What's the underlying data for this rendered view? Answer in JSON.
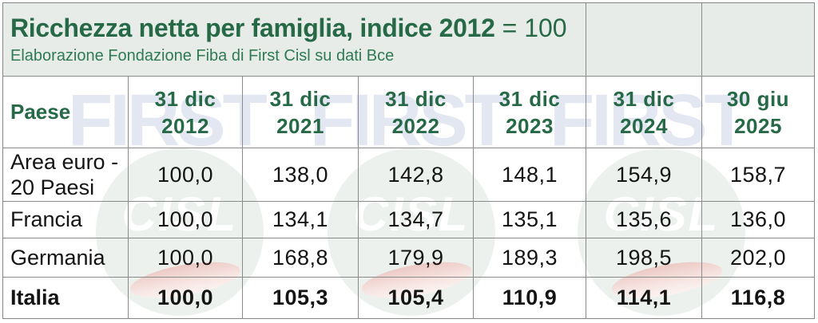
{
  "header": {
    "title_main": "Ricchezza netta per famiglia, indice 2012",
    "title_suffix": "= 100",
    "subtitle": "Elaborazione Fondazione Fiba di First Cisl su dati Bce"
  },
  "table": {
    "corner_label": "Paese",
    "columns": [
      {
        "line1": "31 dic",
        "line2": "2012"
      },
      {
        "line1": "31 dic",
        "line2": "2021"
      },
      {
        "line1": "31 dic",
        "line2": "2022"
      },
      {
        "line1": "31 dic",
        "line2": "2023"
      },
      {
        "line1": "31 dic",
        "line2": "2024"
      },
      {
        "line1": "30 giu",
        "line2": "2025"
      }
    ],
    "rows": [
      {
        "label": "Area euro - 20 Paesi",
        "bold": false,
        "values": [
          "100,0",
          "138,0",
          "142,8",
          "148,1",
          "154,9",
          "158,7"
        ]
      },
      {
        "label": "Francia",
        "bold": false,
        "values": [
          "100,0",
          "134,1",
          "134,7",
          "135,1",
          "135,6",
          "136,0"
        ]
      },
      {
        "label": "Germania",
        "bold": false,
        "values": [
          "100,0",
          "168,8",
          "179,9",
          "189,3",
          "198,5",
          "202,0"
        ]
      },
      {
        "label": "Italia",
        "bold": true,
        "values": [
          "100,0",
          "105,3",
          "105,4",
          "110,9",
          "114,1",
          "116,8"
        ]
      }
    ]
  },
  "watermark": {
    "first_text": "FIRST",
    "cisl_text": "CISL",
    "colors": {
      "first_text": "#e3e7f1",
      "logo_circle": "#edf1ed",
      "logo_letters": "#ffffff",
      "logo_swoosh": "#ecc9c4"
    }
  },
  "colors": {
    "title_green": "#266946",
    "subtitle_green": "#2e7a52",
    "header_bg": "#e8ece8",
    "grid_border": "#8a8a8a",
    "body_text": "#141414"
  },
  "chart_data": {
    "type": "table",
    "title": "Ricchezza netta per famiglia, indice 2012 = 100",
    "subtitle": "Elaborazione Fondazione Fiba di First Cisl su dati Bce",
    "row_header": "Paese",
    "columns": [
      "31 dic 2012",
      "31 dic 2021",
      "31 dic 2022",
      "31 dic 2023",
      "31 dic 2024",
      "30 giu 2025"
    ],
    "rows": [
      {
        "name": "Area euro - 20 Paesi",
        "values": [
          100.0,
          138.0,
          142.8,
          148.1,
          154.9,
          158.7
        ]
      },
      {
        "name": "Francia",
        "values": [
          100.0,
          134.1,
          134.7,
          135.1,
          135.6,
          136.0
        ]
      },
      {
        "name": "Germania",
        "values": [
          100.0,
          168.8,
          179.9,
          189.3,
          198.5,
          202.0
        ]
      },
      {
        "name": "Italia",
        "values": [
          100.0,
          105.3,
          105.4,
          110.9,
          114.1,
          116.8
        ]
      }
    ]
  }
}
